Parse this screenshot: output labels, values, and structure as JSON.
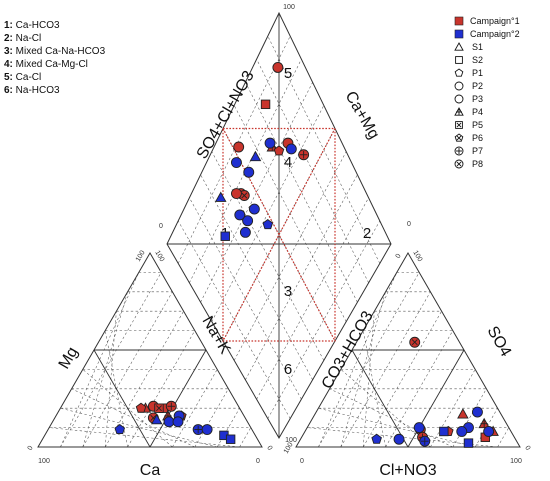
{
  "chart_data": {
    "type": "scatter",
    "subtype": "piper-diagram",
    "axis_labels": {
      "cation_left": "Mg",
      "cation_bottom": "Ca",
      "cation_right": "Na+K",
      "anion_left": "CO3+HCO3",
      "anion_bottom": "Cl+NO3",
      "anion_right": "SO4",
      "diamond_upper_left": "SO4+Cl+NO3",
      "diamond_upper_right": "Ca+Mg"
    },
    "tick_labels": {
      "max": "100",
      "min": "0"
    },
    "zone_key": [
      {
        "number": "1",
        "label": "Ca-HCO3"
      },
      {
        "number": "2",
        "label": "Na-Cl"
      },
      {
        "number": "3",
        "label": "Mixed Ca-Na-HCO3"
      },
      {
        "number": "4",
        "label": "Mixed Ca-Mg-Cl"
      },
      {
        "number": "5",
        "label": "Ca-Cl"
      },
      {
        "number": "6",
        "label": "Na-HCO3"
      }
    ],
    "zone_numbers": [
      "1",
      "2",
      "3",
      "4",
      "5",
      "6"
    ],
    "legend": {
      "series": [
        {
          "name": "Campaign°1",
          "color": "#c8342c"
        },
        {
          "name": "Campaign°2",
          "color": "#1f2fd0"
        }
      ],
      "stations": [
        {
          "name": "S1",
          "symbol": "triangle"
        },
        {
          "name": "S2",
          "symbol": "square"
        },
        {
          "name": "P1",
          "symbol": "pentagon"
        },
        {
          "name": "P2",
          "symbol": "circle"
        },
        {
          "name": "P3",
          "symbol": "circle"
        },
        {
          "name": "P4",
          "symbol": "triangle-plus"
        },
        {
          "name": "P5",
          "symbol": "square-cross"
        },
        {
          "name": "P6",
          "symbol": "pentagon-cross"
        },
        {
          "name": "P7",
          "symbol": "circle-plus"
        },
        {
          "name": "P8",
          "symbol": "circle-cross"
        }
      ]
    },
    "cation_points": [
      {
        "campaign": 1,
        "symbol": "triangle",
        "ca": 42,
        "na_k": 38,
        "mg": 20
      },
      {
        "campaign": 1,
        "symbol": "square",
        "ca": 34,
        "na_k": 46,
        "mg": 20
      },
      {
        "campaign": 1,
        "symbol": "circle",
        "ca": 38,
        "na_k": 41,
        "mg": 21
      },
      {
        "campaign": 1,
        "symbol": "pentagon",
        "ca": 44,
        "na_k": 36,
        "mg": 20
      },
      {
        "campaign": 1,
        "symbol": "square-cross",
        "ca": 36,
        "na_k": 44,
        "mg": 20
      },
      {
        "campaign": 1,
        "symbol": "circle-plus",
        "ca": 30,
        "na_k": 49,
        "mg": 21
      },
      {
        "campaign": 1,
        "symbol": "triangle-plus",
        "ca": 34,
        "na_k": 50,
        "mg": 16
      },
      {
        "campaign": 1,
        "symbol": "circle-cross",
        "ca": 41,
        "na_k": 44,
        "mg": 15
      },
      {
        "campaign": 1,
        "symbol": "pentagon-cross",
        "ca": 28,
        "na_k": 56,
        "mg": 16
      },
      {
        "campaign": 2,
        "symbol": "circle",
        "ca": 35,
        "na_k": 52,
        "mg": 13
      },
      {
        "campaign": 2,
        "symbol": "pentagon",
        "ca": 59,
        "na_k": 32,
        "mg": 9
      },
      {
        "campaign": 2,
        "symbol": "circle",
        "ca": 29,
        "na_k": 55,
        "mg": 16
      },
      {
        "campaign": 2,
        "symbol": "circle-plus",
        "ca": 24,
        "na_k": 67,
        "mg": 9
      },
      {
        "campaign": 2,
        "symbol": "circle",
        "ca": 20,
        "na_k": 71,
        "mg": 9
      },
      {
        "campaign": 2,
        "symbol": "square",
        "ca": 14,
        "na_k": 80,
        "mg": 6
      },
      {
        "campaign": 2,
        "symbol": "square",
        "ca": 12,
        "na_k": 84,
        "mg": 4
      },
      {
        "campaign": 2,
        "symbol": "circle",
        "ca": 31,
        "na_k": 56,
        "mg": 13
      },
      {
        "campaign": 2,
        "symbol": "triangle",
        "ca": 40,
        "na_k": 46,
        "mg": 14
      }
    ],
    "anion_points": [
      {
        "campaign": 1,
        "symbol": "circle-cross",
        "co3_hco3": 20,
        "cl_no3": 26,
        "so4": 54
      },
      {
        "campaign": 1,
        "symbol": "circle",
        "co3_hco3": 40,
        "cl_no3": 51,
        "so4": 9
      },
      {
        "campaign": 1,
        "symbol": "pentagon",
        "co3_hco3": 28,
        "cl_no3": 64,
        "so4": 8
      },
      {
        "campaign": 1,
        "symbol": "triangle",
        "co3_hco3": 17,
        "cl_no3": 66,
        "so4": 17
      },
      {
        "campaign": 1,
        "symbol": "circle-plus",
        "co3_hco3": 41,
        "cl_no3": 54,
        "so4": 5
      },
      {
        "campaign": 1,
        "symbol": "square",
        "co3_hco3": 13,
        "cl_no3": 82,
        "so4": 5
      },
      {
        "campaign": 1,
        "symbol": "triangle",
        "co3_hco3": 8,
        "cl_no3": 84,
        "so4": 8
      },
      {
        "campaign": 1,
        "symbol": "triangle-plus",
        "co3_hco3": 10,
        "cl_no3": 78,
        "so4": 12
      },
      {
        "campaign": 2,
        "symbol": "circle",
        "co3_hco3": 10,
        "cl_no3": 82,
        "so4": 8
      },
      {
        "campaign": 2,
        "symbol": "circle",
        "co3_hco3": 18,
        "cl_no3": 72,
        "so4": 10
      },
      {
        "campaign": 2,
        "symbol": "square",
        "co3_hco3": 22,
        "cl_no3": 76,
        "so4": 2
      },
      {
        "campaign": 2,
        "symbol": "circle",
        "co3_hco3": 22,
        "cl_no3": 70,
        "so4": 8
      },
      {
        "campaign": 2,
        "symbol": "pentagon",
        "co3_hco3": 62,
        "cl_no3": 34,
        "so4": 4
      },
      {
        "campaign": 2,
        "symbol": "circle",
        "co3_hco3": 40,
        "cl_no3": 50,
        "so4": 10
      },
      {
        "campaign": 2,
        "symbol": "square",
        "co3_hco3": 30,
        "cl_no3": 62,
        "so4": 8
      },
      {
        "campaign": 2,
        "symbol": "circle",
        "co3_hco3": 52,
        "cl_no3": 44,
        "so4": 4
      },
      {
        "campaign": 2,
        "symbol": "circle-plus",
        "co3_hco3": 41,
        "cl_no3": 56,
        "so4": 3
      },
      {
        "campaign": 2,
        "symbol": "circle",
        "co3_hco3": 10,
        "cl_no3": 72,
        "so4": 18
      }
    ],
    "diamond_points": [
      {
        "campaign": 1,
        "symbol": "circle",
        "so4_cl_no3": 93,
        "ca_mg": 57
      },
      {
        "campaign": 1,
        "symbol": "triangle-plus",
        "so4_cl_no3": 78,
        "ca_mg": 72
      },
      {
        "campaign": 1,
        "symbol": "pentagon",
        "so4_cl_no3": 74,
        "ca_mg": 74
      },
      {
        "campaign": 1,
        "symbol": "circle-plus",
        "so4_cl_no3": 62,
        "ca_mg": 84
      },
      {
        "campaign": 1,
        "symbol": "circle",
        "so4_cl_no3": 72,
        "ca_mg": 80
      },
      {
        "campaign": 1,
        "symbol": "square",
        "so4_cl_no3": 92,
        "ca_mg": 80
      },
      {
        "campaign": 1,
        "symbol": "circle",
        "so4_cl_no3": 96,
        "ca_mg": 95
      },
      {
        "campaign": 1,
        "symbol": "circle",
        "so4_cl_no3": 80,
        "ca_mg": 46
      },
      {
        "campaign": 1,
        "symbol": "circle-cross",
        "so4_cl_no3": 78,
        "ca_mg": 47
      },
      {
        "campaign": 1,
        "symbol": "circle",
        "so4_cl_no3": 82,
        "ca_mg": 44
      },
      {
        "campaign": 2,
        "symbol": "circle",
        "so4_cl_no3": 69,
        "ca_mg": 80
      },
      {
        "campaign": 2,
        "symbol": "circle",
        "so4_cl_no3": 80,
        "ca_mg": 72
      },
      {
        "campaign": 2,
        "symbol": "triangle",
        "so4_cl_no3": 83,
        "ca_mg": 62
      },
      {
        "campaign": 2,
        "symbol": "circle",
        "so4_cl_no3": 82,
        "ca_mg": 55
      },
      {
        "campaign": 2,
        "symbol": "circle",
        "so4_cl_no3": 90,
        "ca_mg": 52
      },
      {
        "campaign": 2,
        "symbol": "triangle",
        "so4_cl_no3": 88,
        "ca_mg": 36
      },
      {
        "campaign": 2,
        "symbol": "square",
        "so4_cl_no3": 76,
        "ca_mg": 28
      },
      {
        "campaign": 2,
        "symbol": "circle",
        "so4_cl_no3": 68,
        "ca_mg": 38
      },
      {
        "campaign": 2,
        "symbol": "circle",
        "so4_cl_no3": 70,
        "ca_mg": 42
      },
      {
        "campaign": 2,
        "symbol": "circle",
        "so4_cl_no3": 75,
        "ca_mg": 40
      },
      {
        "campaign": 2,
        "symbol": "pentagon",
        "so4_cl_no3": 60,
        "ca_mg": 50
      },
      {
        "campaign": 2,
        "symbol": "circle",
        "so4_cl_no3": 70,
        "ca_mg": 48
      }
    ]
  }
}
